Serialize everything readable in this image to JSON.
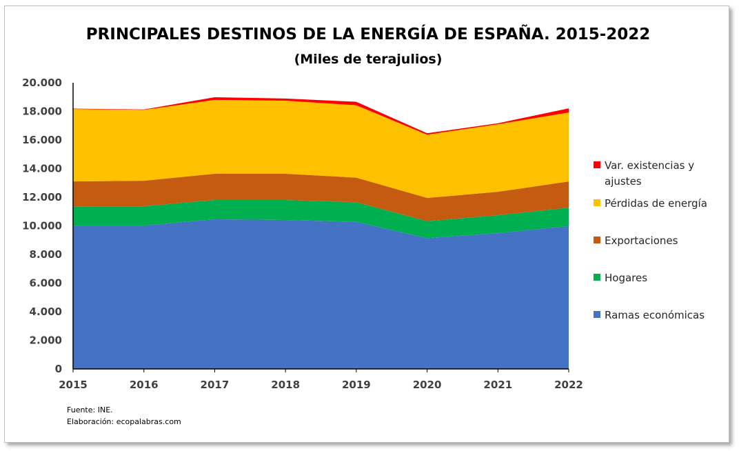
{
  "chart_data": {
    "type": "area",
    "stacked": true,
    "title": "PRINCIPALES DESTINOS DE LA ENERGÍA DE ESPAÑA. 2015-2022",
    "subtitle": "(Miles de terajulios)",
    "xlabel": "",
    "ylabel": "",
    "x": [
      "2015",
      "2016",
      "2017",
      "2018",
      "2019",
      "2020",
      "2021",
      "2022"
    ],
    "ylim": [
      0,
      20000
    ],
    "yticks": [
      "0",
      "2.000",
      "4.000",
      "6.000",
      "8.000",
      "10.000",
      "12.000",
      "14.000",
      "16.000",
      "18.000",
      "20.000"
    ],
    "grid": false,
    "legend_position": "right",
    "series": [
      {
        "name": "Ramas económicas",
        "color": "#4472C4",
        "values": [
          10020,
          10020,
          10460,
          10410,
          10280,
          9140,
          9490,
          9980
        ]
      },
      {
        "name": "Hogares",
        "color": "#00B050",
        "values": [
          1350,
          1350,
          1350,
          1400,
          1370,
          1190,
          1250,
          1300
        ]
      },
      {
        "name": "Exportaciones",
        "color": "#C55A11",
        "values": [
          1735,
          1780,
          1830,
          1830,
          1720,
          1620,
          1640,
          1820
        ]
      },
      {
        "name": "Pérdidas de energía",
        "color": "#FFC000",
        "values": [
          5060,
          4950,
          5160,
          5110,
          5060,
          4420,
          4720,
          4820
        ]
      },
      {
        "name": "Var. existencias y ajustes",
        "color": "#FF0000",
        "values": [
          30,
          30,
          190,
          150,
          240,
          100,
          70,
          290
        ]
      }
    ],
    "legend_lines": [
      [
        "Var. existencias y",
        "ajustes"
      ],
      [
        "Pérdidas de energía"
      ],
      [
        "Exportaciones"
      ],
      [
        "Hogares"
      ],
      [
        "Ramas económicas"
      ]
    ],
    "notes": [
      "Fuente: INE.",
      "Elaboración: ecopalabras.com"
    ]
  }
}
